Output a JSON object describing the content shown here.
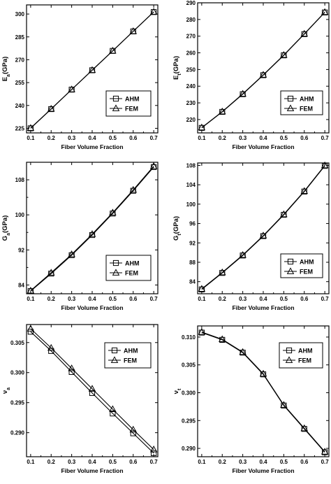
{
  "chart_data": [
    {
      "type": "line",
      "ylabel": "E",
      "ylabel_sub": "a",
      "ylabel_unit": "(GPa)",
      "xlabel": "Fiber Volume Fraction",
      "x": [
        0.1,
        0.2,
        0.3,
        0.4,
        0.5,
        0.6,
        0.7
      ],
      "xlim": [
        0.08,
        0.72
      ],
      "ylim": [
        222,
        306
      ],
      "xticks": [
        "0.1",
        "0.2",
        "0.3",
        "0.4",
        "0.5",
        "0.6",
        "0.7"
      ],
      "yticks": [
        225,
        240,
        255,
        270,
        285,
        300
      ],
      "legend_position": "lower-right",
      "series": [
        {
          "name": "AHM",
          "marker": "square",
          "values": [
            225,
            237.6,
            250.4,
            263.1,
            275.8,
            288.6,
            301.3
          ]
        },
        {
          "name": "FEM",
          "marker": "triangle",
          "values": [
            225.2,
            237.8,
            250.5,
            263.2,
            275.9,
            288.7,
            301.4
          ]
        }
      ]
    },
    {
      "type": "line",
      "ylabel": "E",
      "ylabel_sub": "t",
      "ylabel_unit": "(GPa)",
      "xlabel": "Fiber Volume Fraction",
      "x": [
        0.1,
        0.2,
        0.3,
        0.4,
        0.5,
        0.6,
        0.7
      ],
      "xlim": [
        0.08,
        0.72
      ],
      "ylim": [
        212,
        290
      ],
      "xticks": [
        "0.1",
        "0.2",
        "0.3",
        "0.4",
        "0.5",
        "0.6",
        "0.7"
      ],
      "yticks": [
        220,
        230,
        240,
        250,
        260,
        270,
        280,
        290
      ],
      "legend_position": "lower-right",
      "series": [
        {
          "name": "AHM",
          "marker": "square",
          "values": [
            215,
            224.6,
            235.2,
            246.6,
            258.5,
            271.2,
            284.2
          ]
        },
        {
          "name": "FEM",
          "marker": "triangle",
          "values": [
            215.2,
            224.8,
            235.4,
            246.8,
            258.7,
            271.4,
            284.4
          ]
        }
      ]
    },
    {
      "type": "line",
      "ylabel": "G",
      "ylabel_sub": "a",
      "ylabel_unit": "(GPa)",
      "xlabel": "Fiber Volume Fraction",
      "x": [
        0.1,
        0.2,
        0.3,
        0.4,
        0.5,
        0.6,
        0.7
      ],
      "xlim": [
        0.08,
        0.72
      ],
      "ylim": [
        82,
        112
      ],
      "xticks": [
        "0.1",
        "0.2",
        "0.3",
        "0.4",
        "0.5",
        "0.6",
        "0.7"
      ],
      "yticks": [
        84,
        92,
        100,
        108
      ],
      "yticks_minor": [
        88,
        96,
        104,
        112
      ],
      "legend_position": "lower-right",
      "series": [
        {
          "name": "AHM",
          "marker": "square",
          "values": [
            82.6,
            86.6,
            90.8,
            95.4,
            100.3,
            105.5,
            110.9
          ]
        },
        {
          "name": "FEM",
          "marker": "triangle",
          "values": [
            82.7,
            86.8,
            91.0,
            95.6,
            100.5,
            105.7,
            111.1
          ]
        }
      ]
    },
    {
      "type": "line",
      "ylabel": "G",
      "ylabel_sub": "t",
      "ylabel_unit": "(GPa)",
      "xlabel": "Fiber Volume Fraction",
      "x": [
        0.1,
        0.2,
        0.3,
        0.4,
        0.5,
        0.6,
        0.7
      ],
      "xlim": [
        0.08,
        0.72
      ],
      "ylim": [
        81.5,
        108.5
      ],
      "xticks": [
        "0.1",
        "0.2",
        "0.3",
        "0.4",
        "0.5",
        "0.6",
        "0.7"
      ],
      "yticks": [
        84,
        88,
        92,
        96,
        100,
        104,
        108
      ],
      "legend_position": "lower-right",
      "series": [
        {
          "name": "AHM",
          "marker": "square",
          "values": [
            82.4,
            85.8,
            89.4,
            93.4,
            97.8,
            102.6,
            107.9
          ]
        },
        {
          "name": "FEM",
          "marker": "triangle",
          "values": [
            82.5,
            85.9,
            89.5,
            93.5,
            97.9,
            102.7,
            108.0
          ]
        }
      ]
    },
    {
      "type": "line",
      "ylabel": "ν",
      "ylabel_sub": "a",
      "ylabel_unit": "",
      "xlabel": "Fiber Volume Fraction",
      "x": [
        0.1,
        0.2,
        0.3,
        0.4,
        0.5,
        0.6,
        0.7
      ],
      "xlim": [
        0.08,
        0.72
      ],
      "ylim": [
        0.286,
        0.308
      ],
      "xticks": [
        "0.1",
        "0.2",
        "0.3",
        "0.4",
        "0.5",
        "0.6",
        "0.7"
      ],
      "yticks": [
        0.29,
        0.295,
        0.3,
        0.305
      ],
      "yticks_labels": [
        "0.290",
        "0.295",
        "0.300",
        "0.305"
      ],
      "legend_position": "upper-right",
      "series": [
        {
          "name": "AHM",
          "marker": "square",
          "values": [
            0.3068,
            0.3036,
            0.3001,
            0.2966,
            0.2932,
            0.2899,
            0.2866
          ]
        },
        {
          "name": "FEM",
          "marker": "triangle",
          "values": [
            0.3073,
            0.3041,
            0.3007,
            0.2973,
            0.2939,
            0.2905,
            0.2872
          ]
        }
      ]
    },
    {
      "type": "line",
      "ylabel": "ν",
      "ylabel_sub": "t",
      "ylabel_unit": "",
      "xlabel": "Fiber Volume Fraction",
      "x": [
        0.1,
        0.2,
        0.3,
        0.4,
        0.5,
        0.6,
        0.7
      ],
      "xlim": [
        0.08,
        0.72
      ],
      "ylim": [
        0.2885,
        0.312
      ],
      "xticks": [
        "0.1",
        "0.2",
        "0.3",
        "0.4",
        "0.5",
        "0.6",
        "0.7"
      ],
      "yticks": [
        0.29,
        0.295,
        0.3,
        0.305,
        0.31
      ],
      "yticks_labels": [
        "0.290",
        "0.295",
        "0.300",
        "0.305",
        "0.310"
      ],
      "legend_position": "upper-right",
      "series": [
        {
          "name": "AHM",
          "marker": "square",
          "values": [
            0.3108,
            0.3095,
            0.3072,
            0.3033,
            0.2977,
            0.2935,
            0.2893
          ]
        },
        {
          "name": "FEM",
          "marker": "triangle",
          "values": [
            0.3109,
            0.3096,
            0.3073,
            0.3034,
            0.2978,
            0.2936,
            0.2894
          ]
        }
      ]
    }
  ]
}
